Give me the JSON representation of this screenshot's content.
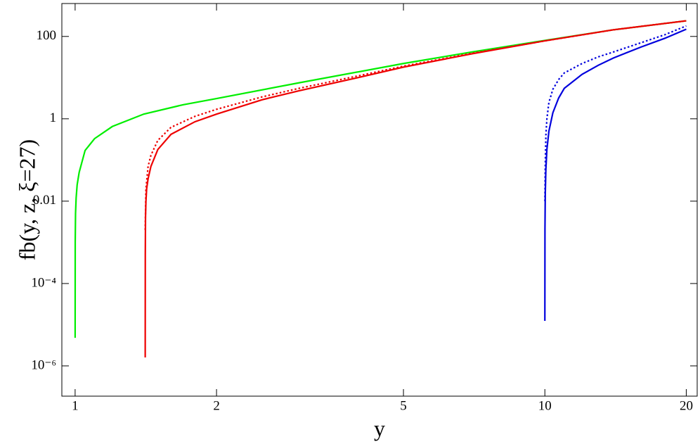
{
  "chart_data": {
    "type": "line",
    "xlabel": "y",
    "ylabel": "fb(y, z, ξ=27)",
    "xscale": "log",
    "yscale": "log",
    "xlim": [
      0.937,
      21.1
    ],
    "ylim": [
      1.84e-07,
      630
    ],
    "xticks": [
      1,
      2,
      5,
      10,
      20
    ],
    "yticks": [
      {
        "value": 1e-06,
        "label": "10⁻⁶"
      },
      {
        "value": 0.0001,
        "label": "10⁻⁴"
      },
      0.01,
      1,
      100
    ],
    "series": [
      {
        "color": "#00ee00",
        "dash": "solid",
        "x": [
          1.0,
          1.0005,
          1.002,
          1.005,
          1.01,
          1.02,
          1.05,
          1.1,
          1.2,
          1.4,
          1.7,
          2,
          3,
          5,
          7,
          10,
          14,
          20
        ],
        "values": [
          4.8e-06,
          0.001,
          0.005,
          0.012,
          0.025,
          0.05,
          0.17,
          0.33,
          0.65,
          1.3,
          2.2,
          3.1,
          7.5,
          22,
          42,
          80,
          145,
          240
        ]
      },
      {
        "color": "#ee0000",
        "dash": "solid",
        "x": [
          1.41,
          1.4105,
          1.412,
          1.415,
          1.42,
          1.43,
          1.45,
          1.5,
          1.6,
          1.8,
          2,
          2.5,
          3,
          4,
          5,
          7,
          10,
          14,
          20
        ],
        "values": [
          1.6e-06,
          0.0005,
          0.004,
          0.01,
          0.02,
          0.035,
          0.07,
          0.18,
          0.42,
          0.85,
          1.3,
          2.9,
          4.8,
          10,
          18,
          38,
          78,
          145,
          240
        ]
      },
      {
        "color": "#ee0000",
        "dash": "dotted",
        "x": [
          1.41,
          1.415,
          1.43,
          1.45,
          1.5,
          1.6,
          1.8,
          2,
          2.5,
          3,
          4,
          5,
          7,
          10,
          14,
          20
        ],
        "values": [
          0.002,
          0.02,
          0.07,
          0.13,
          0.3,
          0.62,
          1.15,
          1.7,
          3.4,
          5.5,
          11,
          19,
          39,
          78,
          145,
          240
        ]
      },
      {
        "color": "#0000dd",
        "dash": "solid",
        "x": [
          10,
          10.005,
          10.02,
          10.05,
          10.1,
          10.2,
          10.4,
          10.7,
          11,
          12,
          13,
          14,
          16,
          18,
          20
        ],
        "values": [
          1.24e-05,
          0.002,
          0.015,
          0.06,
          0.18,
          0.5,
          1.4,
          3.2,
          5.5,
          12,
          20,
          30,
          55,
          90,
          150
        ]
      },
      {
        "color": "#0000dd",
        "dash": "dotted",
        "x": [
          10.003,
          10.02,
          10.05,
          10.1,
          10.2,
          10.4,
          10.7,
          11,
          12,
          13,
          14,
          16,
          18,
          20
        ],
        "values": [
          0.01,
          0.08,
          0.4,
          1,
          2.5,
          5.2,
          9,
          13,
          22,
          32,
          42,
          70,
          110,
          180
        ]
      }
    ]
  }
}
